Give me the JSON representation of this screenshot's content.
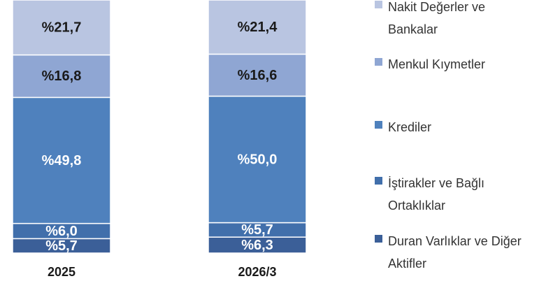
{
  "chart_data": {
    "type": "stacked_bar",
    "categories": [
      "2025",
      "2026/3"
    ],
    "ylim": [
      0,
      100
    ],
    "series": [
      {
        "name": "Duran Varlıklar ve Diğer Aktifler",
        "color": "#3b5f98",
        "values": [
          5.7,
          6.3
        ],
        "value_labels": [
          "%5,7",
          "%6,3"
        ]
      },
      {
        "name": "İştirakler ve Bağlı Ortaklıklar",
        "color": "#416fab",
        "values": [
          6.0,
          5.7
        ],
        "value_labels": [
          "%6,0",
          "%5,7"
        ]
      },
      {
        "name": "Krediler",
        "color": "#4f81bd",
        "values": [
          49.8,
          50.0
        ],
        "value_labels": [
          "%49,8",
          "%50,0"
        ]
      },
      {
        "name": "Menkul Kıymetler",
        "color": "#8fa6d3",
        "values": [
          16.8,
          16.6
        ],
        "value_labels": [
          "%16,8",
          "%16,6"
        ]
      },
      {
        "name": "Nakit Değerler ve Bankalar",
        "color": "#b9c5e1",
        "values": [
          21.7,
          21.4
        ],
        "value_labels": [
          "%21,7",
          "%21,4"
        ]
      }
    ]
  }
}
